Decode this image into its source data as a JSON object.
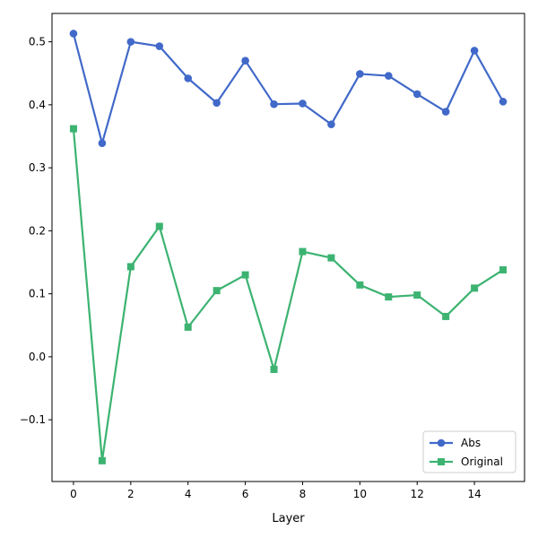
{
  "chart_data": {
    "type": "line",
    "title": "",
    "xlabel": "Layer",
    "ylabel": "",
    "xlim": [
      -0.75,
      15.75
    ],
    "ylim": [
      -0.198,
      0.545
    ],
    "xticks": [
      0,
      2,
      4,
      6,
      8,
      10,
      12,
      14
    ],
    "yticks": [
      -0.1,
      0.0,
      0.1,
      0.2,
      0.3,
      0.4,
      0.5
    ],
    "ytick_labels": [
      "−0.1",
      "0.0",
      "0.1",
      "0.2",
      "0.3",
      "0.4",
      "0.5"
    ],
    "grid": false,
    "legend_position": "lower-right",
    "x": [
      0,
      1,
      2,
      3,
      4,
      5,
      6,
      7,
      8,
      9,
      10,
      11,
      12,
      13,
      14,
      15
    ],
    "series": [
      {
        "name": "Abs",
        "color": "#4169c9",
        "marker": "circle",
        "values": [
          0.513,
          0.339,
          0.5,
          0.493,
          0.442,
          0.403,
          0.47,
          0.401,
          0.402,
          0.369,
          0.449,
          0.446,
          0.417,
          0.389,
          0.486,
          0.405
        ]
      },
      {
        "name": "Original",
        "color": "#3cb371",
        "marker": "square",
        "values": [
          0.362,
          -0.165,
          0.143,
          0.207,
          0.047,
          0.105,
          0.13,
          -0.02,
          0.167,
          0.157,
          0.114,
          0.095,
          0.098,
          0.064,
          0.109,
          0.138
        ]
      }
    ]
  }
}
